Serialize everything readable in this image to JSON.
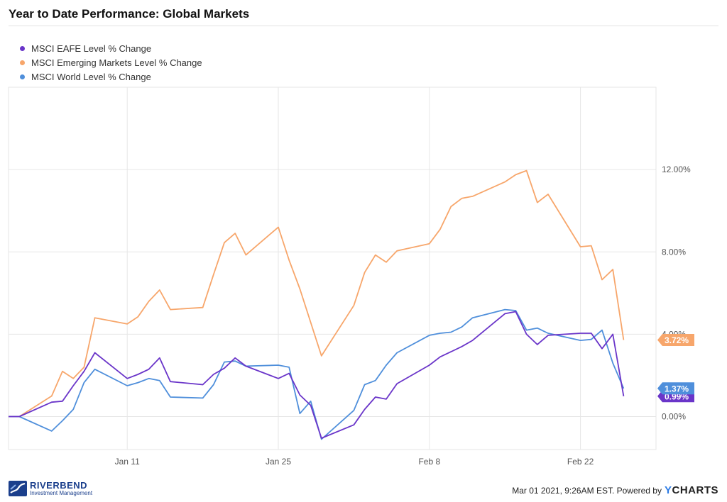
{
  "header": {
    "title": "Year to Date Performance: Global Markets"
  },
  "footer": {
    "timestamp": "Mar 01 2021, 9:26AM EST. Powered by",
    "brand_y": "Y",
    "brand_rest": "CHARTS",
    "logo_name": "RIVERBEND",
    "logo_sub": "Investment Management"
  },
  "colors": {
    "eafe": "#6a35c9",
    "em": "#f7a66b",
    "world": "#4f8fdb",
    "grid": "#e6e6e6",
    "axis_text": "#555555"
  },
  "chart_data": {
    "type": "line",
    "title": "Year to Date Performance: Global Markets",
    "legend_position": "top-left",
    "grid": true,
    "x_ticks": [
      "Jan 11",
      "Jan 25",
      "Feb 8",
      "Feb 22"
    ],
    "y_ticks": [
      "0.00%",
      "4.00%",
      "8.00%",
      "12.00%"
    ],
    "ylim": [
      -1.6,
      16.0
    ],
    "xlim": [
      "2020-12-31",
      "2021-03-01"
    ],
    "series": [
      {
        "name": "MSCI EAFE Level % Change",
        "color": "#6a35c9",
        "last_label": "0.99%",
        "points": [
          [
            "2020-12-31",
            0.0
          ],
          [
            "2021-01-01",
            0.0
          ],
          [
            "2021-01-04",
            0.7
          ],
          [
            "2021-01-05",
            0.75
          ],
          [
            "2021-01-06",
            1.5
          ],
          [
            "2021-01-07",
            2.2
          ],
          [
            "2021-01-08",
            3.1
          ],
          [
            "2021-01-11",
            1.85
          ],
          [
            "2021-01-12",
            2.05
          ],
          [
            "2021-01-13",
            2.3
          ],
          [
            "2021-01-14",
            2.85
          ],
          [
            "2021-01-15",
            1.7
          ],
          [
            "2021-01-18",
            1.55
          ],
          [
            "2021-01-19",
            2.05
          ],
          [
            "2021-01-20",
            2.35
          ],
          [
            "2021-01-21",
            2.85
          ],
          [
            "2021-01-22",
            2.45
          ],
          [
            "2021-01-25",
            1.85
          ],
          [
            "2021-01-26",
            2.1
          ],
          [
            "2021-01-27",
            1.05
          ],
          [
            "2021-01-28",
            0.55
          ],
          [
            "2021-01-29",
            -1.05
          ],
          [
            "2021-02-01",
            -0.4
          ],
          [
            "2021-02-02",
            0.35
          ],
          [
            "2021-02-03",
            0.95
          ],
          [
            "2021-02-04",
            0.85
          ],
          [
            "2021-02-05",
            1.6
          ],
          [
            "2021-02-08",
            2.5
          ],
          [
            "2021-02-09",
            2.9
          ],
          [
            "2021-02-10",
            3.15
          ],
          [
            "2021-02-11",
            3.4
          ],
          [
            "2021-02-12",
            3.7
          ],
          [
            "2021-02-15",
            5.0
          ],
          [
            "2021-02-16",
            5.1
          ],
          [
            "2021-02-17",
            4.0
          ],
          [
            "2021-02-18",
            3.5
          ],
          [
            "2021-02-19",
            3.95
          ],
          [
            "2021-02-22",
            4.05
          ],
          [
            "2021-02-23",
            4.05
          ],
          [
            "2021-02-24",
            3.3
          ],
          [
            "2021-02-25",
            4.0
          ],
          [
            "2021-02-26",
            0.99
          ]
        ]
      },
      {
        "name": "MSCI Emerging Markets Level % Change",
        "color": "#f7a66b",
        "last_label": "3.72%",
        "points": [
          [
            "2020-12-31",
            0.0
          ],
          [
            "2021-01-01",
            0.0
          ],
          [
            "2021-01-04",
            1.0
          ],
          [
            "2021-01-05",
            2.2
          ],
          [
            "2021-01-06",
            1.85
          ],
          [
            "2021-01-07",
            2.4
          ],
          [
            "2021-01-08",
            4.8
          ],
          [
            "2021-01-11",
            4.5
          ],
          [
            "2021-01-12",
            4.85
          ],
          [
            "2021-01-13",
            5.6
          ],
          [
            "2021-01-14",
            6.15
          ],
          [
            "2021-01-15",
            5.2
          ],
          [
            "2021-01-18",
            5.3
          ],
          [
            "2021-01-19",
            6.9
          ],
          [
            "2021-01-20",
            8.45
          ],
          [
            "2021-01-21",
            8.9
          ],
          [
            "2021-01-22",
            7.85
          ],
          [
            "2021-01-25",
            9.2
          ],
          [
            "2021-01-26",
            7.6
          ],
          [
            "2021-01-27",
            6.2
          ],
          [
            "2021-01-29",
            2.95
          ],
          [
            "2021-02-01",
            5.4
          ],
          [
            "2021-02-02",
            7.0
          ],
          [
            "2021-02-03",
            7.85
          ],
          [
            "2021-02-04",
            7.5
          ],
          [
            "2021-02-05",
            8.05
          ],
          [
            "2021-02-08",
            8.4
          ],
          [
            "2021-02-09",
            9.1
          ],
          [
            "2021-02-10",
            10.2
          ],
          [
            "2021-02-11",
            10.6
          ],
          [
            "2021-02-12",
            10.7
          ],
          [
            "2021-02-15",
            11.4
          ],
          [
            "2021-02-16",
            11.75
          ],
          [
            "2021-02-17",
            11.95
          ],
          [
            "2021-02-18",
            10.4
          ],
          [
            "2021-02-19",
            10.8
          ],
          [
            "2021-02-22",
            8.25
          ],
          [
            "2021-02-23",
            8.3
          ],
          [
            "2021-02-24",
            6.65
          ],
          [
            "2021-02-25",
            7.15
          ],
          [
            "2021-02-26",
            3.72
          ]
        ]
      },
      {
        "name": "MSCI World Level % Change",
        "color": "#4f8fdb",
        "last_label": "1.37%",
        "points": [
          [
            "2020-12-31",
            0.0
          ],
          [
            "2021-01-01",
            0.0
          ],
          [
            "2021-01-04",
            -0.7
          ],
          [
            "2021-01-05",
            -0.2
          ],
          [
            "2021-01-06",
            0.35
          ],
          [
            "2021-01-07",
            1.65
          ],
          [
            "2021-01-08",
            2.3
          ],
          [
            "2021-01-11",
            1.5
          ],
          [
            "2021-01-12",
            1.65
          ],
          [
            "2021-01-13",
            1.85
          ],
          [
            "2021-01-14",
            1.75
          ],
          [
            "2021-01-15",
            0.95
          ],
          [
            "2021-01-18",
            0.9
          ],
          [
            "2021-01-19",
            1.55
          ],
          [
            "2021-01-20",
            2.65
          ],
          [
            "2021-01-21",
            2.7
          ],
          [
            "2021-01-22",
            2.45
          ],
          [
            "2021-01-25",
            2.5
          ],
          [
            "2021-01-26",
            2.4
          ],
          [
            "2021-01-27",
            0.15
          ],
          [
            "2021-01-28",
            0.75
          ],
          [
            "2021-01-29",
            -1.1
          ],
          [
            "2021-02-01",
            0.3
          ],
          [
            "2021-02-02",
            1.55
          ],
          [
            "2021-02-03",
            1.75
          ],
          [
            "2021-02-04",
            2.5
          ],
          [
            "2021-02-05",
            3.1
          ],
          [
            "2021-02-08",
            3.95
          ],
          [
            "2021-02-09",
            4.05
          ],
          [
            "2021-02-10",
            4.1
          ],
          [
            "2021-02-11",
            4.35
          ],
          [
            "2021-02-12",
            4.8
          ],
          [
            "2021-02-15",
            5.2
          ],
          [
            "2021-02-16",
            5.15
          ],
          [
            "2021-02-17",
            4.2
          ],
          [
            "2021-02-18",
            4.3
          ],
          [
            "2021-02-19",
            4.05
          ],
          [
            "2021-02-22",
            3.7
          ],
          [
            "2021-02-23",
            3.75
          ],
          [
            "2021-02-24",
            4.2
          ],
          [
            "2021-02-25",
            2.6
          ],
          [
            "2021-02-26",
            1.37
          ]
        ]
      }
    ]
  }
}
